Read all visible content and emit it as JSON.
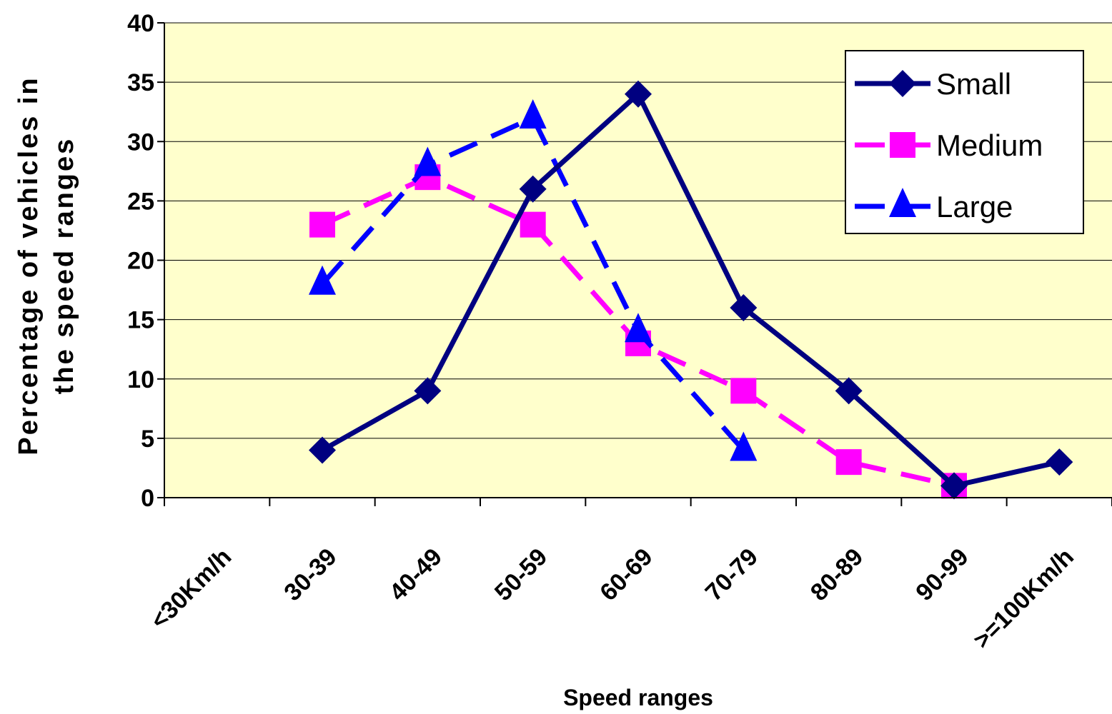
{
  "chart_data": {
    "type": "line",
    "title": "",
    "xlabel": "Speed ranges",
    "ylabel_lines": [
      "Percentage of vehicles in",
      "the speed ranges"
    ],
    "categories": [
      "<30Km/h",
      "30-39",
      "40-49",
      "50-59",
      "60-69",
      "70-79",
      "80-89",
      "90-99",
      ">=100Km/h"
    ],
    "ylim": [
      0,
      40
    ],
    "yticks": [
      "0",
      "5",
      "10",
      "15",
      "20",
      "25",
      "30",
      "35",
      "40"
    ],
    "grid": "horizontal",
    "legend_position": "top-right",
    "plot_background": "#FFFFCC",
    "series": [
      {
        "name": "Small",
        "color": "#000080",
        "marker": "diamond",
        "dash": "solid",
        "values": [
          null,
          4,
          9,
          26,
          34,
          16,
          9,
          1,
          3
        ]
      },
      {
        "name": "Medium",
        "color": "#FF00FF",
        "marker": "square",
        "dash": "dashed",
        "values": [
          null,
          23,
          27,
          23,
          13,
          9,
          3,
          1,
          null
        ]
      },
      {
        "name": "Large",
        "color": "#0000FF",
        "marker": "triangle",
        "dash": "dashed",
        "values": [
          null,
          18,
          28,
          32,
          14,
          4,
          null,
          null,
          null
        ]
      }
    ]
  }
}
